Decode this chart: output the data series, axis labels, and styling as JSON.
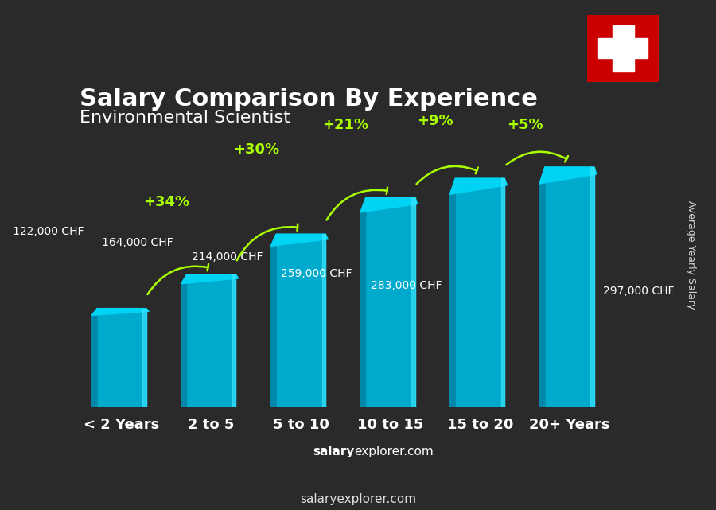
{
  "title": "Salary Comparison By Experience",
  "subtitle": "Environmental Scientist",
  "categories": [
    "< 2 Years",
    "2 to 5",
    "5 to 10",
    "10 to 15",
    "15 to 20",
    "20+ Years"
  ],
  "values": [
    122000,
    164000,
    214000,
    259000,
    283000,
    297000
  ],
  "labels": [
    "122,000 CHF",
    "164,000 CHF",
    "214,000 CHF",
    "259,000 CHF",
    "283,000 CHF",
    "297,000 CHF"
  ],
  "pct_labels": [
    "+34%",
    "+30%",
    "+21%",
    "+9%",
    "+5%"
  ],
  "bar_color_top": "#00d4f5",
  "bar_color_mid": "#00aacc",
  "bar_color_dark": "#0088aa",
  "background_color": "#2a2a2a",
  "title_color": "#ffffff",
  "subtitle_color": "#ffffff",
  "label_color": "#cccccc",
  "pct_color": "#aaff00",
  "xlabel_color": "#ffffff",
  "ylabel": "Average Yearly Salary",
  "watermark": "salaryexplorer.com",
  "swiss_flag_color": "#ff0000",
  "ylim": [
    0,
    350000
  ]
}
